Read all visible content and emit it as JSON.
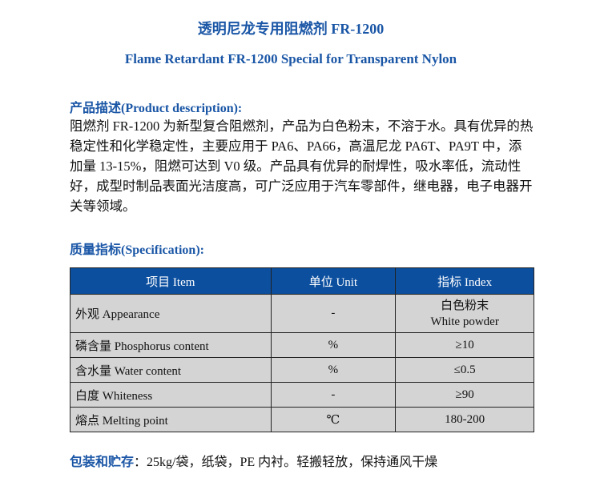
{
  "title_cn": "透明尼龙专用阻燃剂 FR-1200",
  "title_en": "Flame Retardant FR-1200 Special for Transparent Nylon",
  "description": {
    "heading": "产品描述(Product description):",
    "lines": [
      "阻燃剂 FR-1200 为新型复合阻燃剂，产品为白色粉末，不溶于水。具有优异的热",
      "稳定性和化学稳定性，主要应用于 PA6、PA66，高温尼龙 PA6T、PA9T 中，添",
      "加量 13-15%，阻燃可达到 V0 级。产品具有优异的耐焊性，吸水率低，流动性",
      "好，成型时制品表面光洁度高，可广泛应用于汽车零部件，继电器，电子电器开",
      "关等领域。"
    ]
  },
  "specification": {
    "heading": "质量指标(Specification):",
    "headers": [
      "项目 Item",
      "单位 Unit",
      "指标  Index"
    ],
    "rows": [
      {
        "item": "外观  Appearance",
        "unit": "-",
        "index": "白色粉末",
        "index2": "White powder"
      },
      {
        "item": "磷含量  Phosphorus content",
        "unit": "%",
        "index": "≥10"
      },
      {
        "item": "含水量  Water content",
        "unit": "%",
        "index": "≤0.5"
      },
      {
        "item": "白度  Whiteness",
        "unit": "-",
        "index": "≥90"
      },
      {
        "item": "熔点  Melting point",
        "unit": "℃",
        "index": "180-200"
      }
    ]
  },
  "packaging": {
    "label": "包装和贮存",
    "text": "：25kg/袋，纸袋，PE 内衬。轻搬轻放，保持通风干燥"
  },
  "colors": {
    "accent": "#1a56a6",
    "table_header": "#0c4f9f",
    "table_row": "#d4d4d4"
  }
}
